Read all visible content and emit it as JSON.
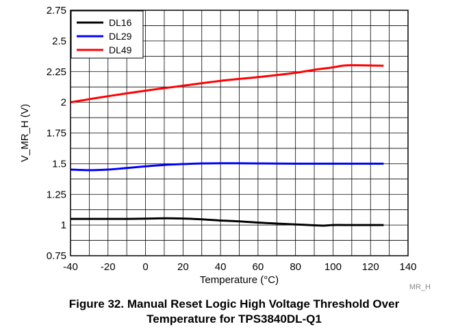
{
  "chart_data": {
    "type": "line",
    "xlabel": "Temperature (°C)",
    "ylabel": "V_MR_H (V)",
    "xlim": [
      -40,
      140
    ],
    "ylim": [
      0.75,
      2.75
    ],
    "xticks": [
      -40,
      -20,
      0,
      20,
      40,
      60,
      80,
      100,
      120,
      140
    ],
    "yticks": [
      0.75,
      1,
      1.25,
      1.5,
      1.75,
      2,
      2.25,
      2.5,
      2.75
    ],
    "ytick_labels": [
      "0.75",
      "1",
      "1.25",
      "1.5",
      "1.75",
      "2",
      "2.25",
      "2.5",
      "2.75"
    ],
    "grid": true,
    "legend_position": "top-left",
    "series": [
      {
        "name": "DL16",
        "color": "#000000",
        "x": [
          -40,
          -30,
          -20,
          -10,
          0,
          10,
          20,
          30,
          40,
          50,
          60,
          70,
          80,
          90,
          95,
          100,
          110,
          120,
          127
        ],
        "y": [
          1.05,
          1.05,
          1.05,
          1.05,
          1.052,
          1.055,
          1.053,
          1.047,
          1.037,
          1.03,
          1.02,
          1.012,
          1.005,
          0.998,
          0.995,
          1.0,
          1.0,
          1.0,
          1.0
        ]
      },
      {
        "name": "DL29",
        "color": "#0000ff",
        "x": [
          -40,
          -30,
          -20,
          -10,
          0,
          10,
          20,
          30,
          40,
          50,
          60,
          80,
          100,
          127
        ],
        "y": [
          1.452,
          1.447,
          1.452,
          1.465,
          1.478,
          1.49,
          1.497,
          1.502,
          1.503,
          1.503,
          1.502,
          1.5,
          1.5,
          1.5
        ]
      },
      {
        "name": "DL49",
        "color": "#ff0000",
        "x": [
          -40,
          -20,
          0,
          20,
          40,
          60,
          80,
          90,
          100,
          105,
          110,
          120,
          127
        ],
        "y": [
          2.0,
          2.05,
          2.095,
          2.135,
          2.175,
          2.205,
          2.24,
          2.265,
          2.285,
          2.298,
          2.302,
          2.3,
          2.298
        ]
      }
    ]
  },
  "figure": {
    "code": "MR_H",
    "caption_line1": "Figure 32. Manual Reset Logic High Voltage Threshold Over",
    "caption_line2": "Temperature for TPS3840DL-Q1"
  }
}
